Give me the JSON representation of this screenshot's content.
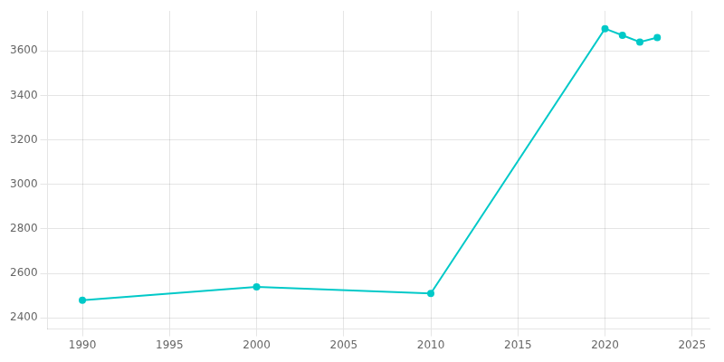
{
  "chart_data": {
    "type": "line",
    "x": [
      1990,
      2000,
      2010,
      2020,
      2021,
      2022,
      2023
    ],
    "values": [
      2480,
      2540,
      2510,
      3700,
      3670,
      3640,
      3660
    ],
    "color": "#00C9C8",
    "marker": "circle",
    "xlim": [
      1988,
      2026
    ],
    "ylim": [
      2350,
      3780
    ],
    "xticks": [
      1990,
      1995,
      2000,
      2005,
      2010,
      2015,
      2020,
      2025
    ],
    "yticks": [
      2400,
      2600,
      2800,
      3000,
      3200,
      3400,
      3600
    ],
    "grid": true
  }
}
